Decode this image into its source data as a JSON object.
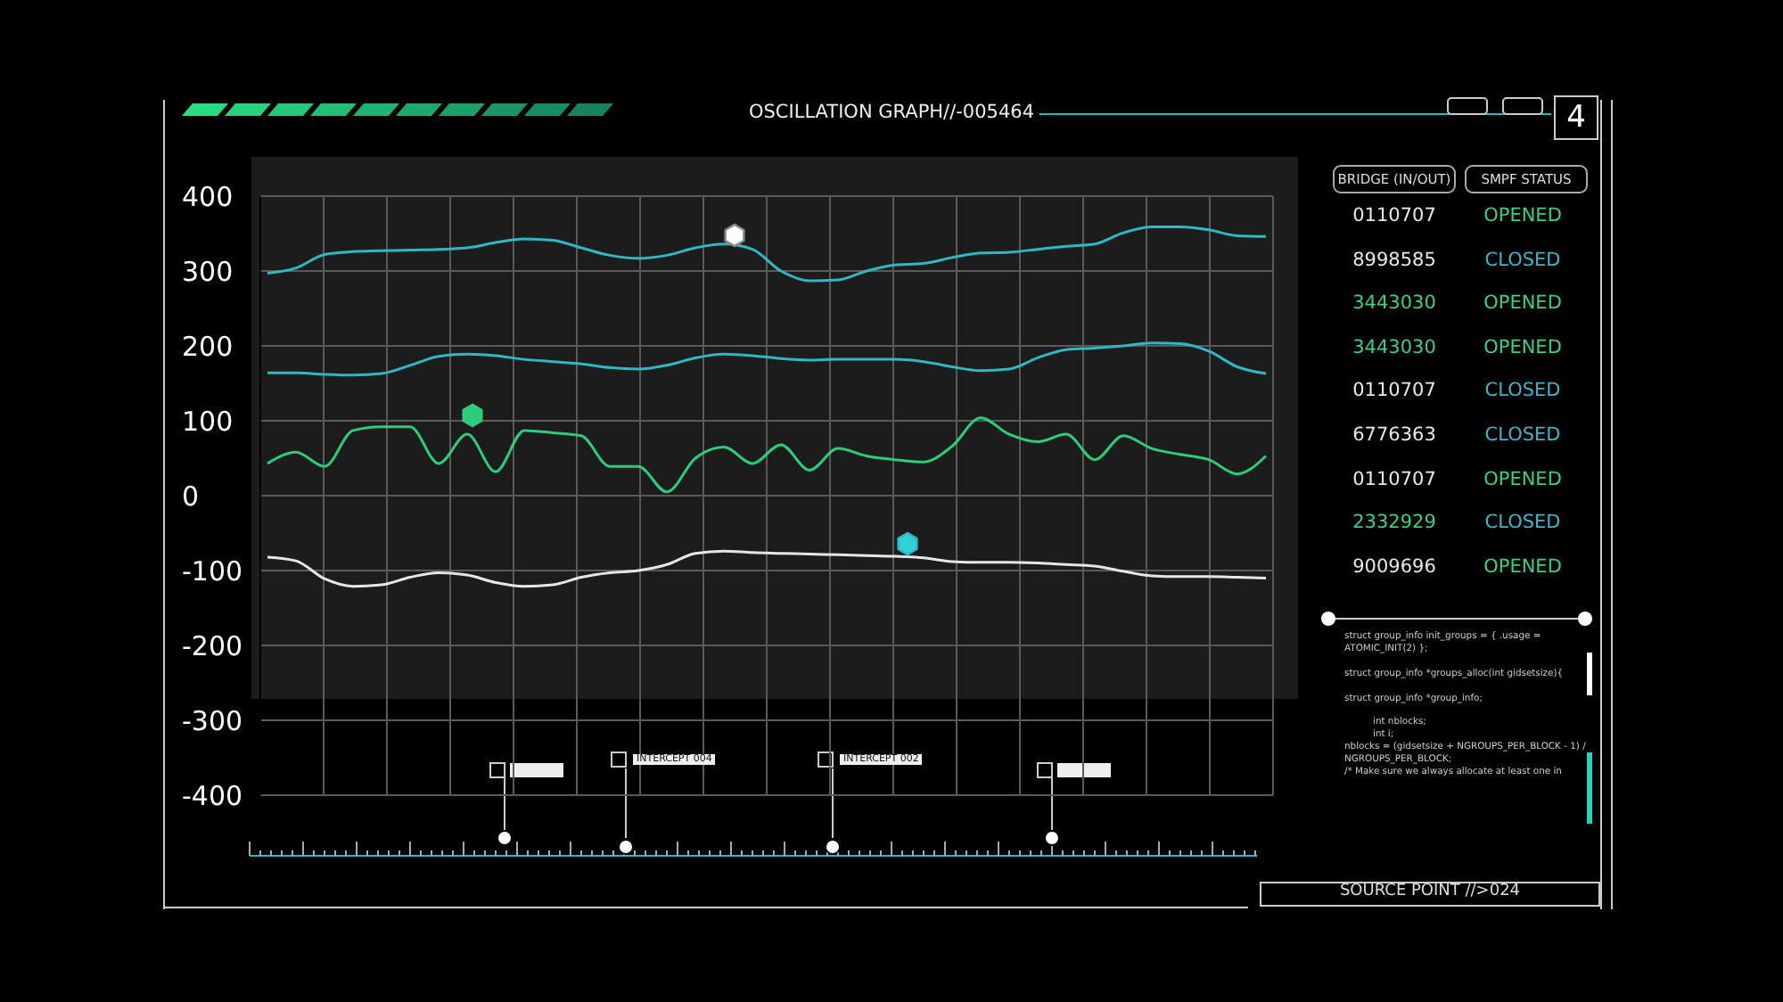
{
  "chart_data": {
    "type": "line",
    "title": "OSCILLATION GRAPH//-005464",
    "categories": [
      null,
      null,
      null,
      null,
      null,
      null,
      null,
      null,
      null,
      null,
      null,
      null,
      null,
      null,
      null,
      null,
      null,
      null,
      null,
      null,
      null,
      null,
      null,
      null,
      null,
      null,
      null,
      null,
      null,
      null,
      null,
      null,
      null,
      null,
      null,
      null
    ],
    "series": [
      {
        "color": "#2fb8c4",
        "values": [
          297,
          304,
          322,
          326,
          327,
          328,
          329,
          331,
          338,
          343,
          341,
          331,
          321,
          317,
          321,
          331,
          336,
          329,
          300,
          287,
          288,
          300,
          308,
          310,
          318,
          324,
          325,
          329,
          333,
          336,
          351,
          359,
          359,
          355,
          347,
          346
        ]
      },
      {
        "color": "#2fb8c4",
        "values": [
          164,
          164,
          162,
          161,
          163,
          174,
          186,
          189,
          187,
          182,
          179,
          176,
          171,
          169,
          174,
          184,
          189,
          187,
          183,
          181,
          182,
          182,
          182,
          179,
          172,
          167,
          169,
          184,
          195,
          197,
          200,
          204,
          203,
          193,
          172,
          163
        ]
      },
      {
        "color": "#2ecc7a",
        "values": [
          43,
          58,
          39,
          87,
          92,
          92,
          43,
          82,
          32,
          87,
          84,
          80,
          39,
          39,
          5,
          50,
          65,
          43,
          68,
          34,
          63,
          53,
          48,
          45,
          66,
          104,
          82,
          72,
          82,
          48,
          80,
          63,
          55,
          48,
          29,
          53
        ]
      },
      {
        "color": "#e6e6e6",
        "values": [
          -82,
          -87,
          -111,
          -121,
          -119,
          -109,
          -103,
          -106,
          -116,
          -121,
          -119,
          -109,
          -103,
          -100,
          -92,
          -77,
          -74,
          -76,
          -77,
          -78,
          -79,
          -80,
          -81,
          -83,
          -88,
          -89,
          -89,
          -90,
          -92,
          -94,
          -101,
          -107,
          -108,
          -108,
          -109,
          -110
        ]
      }
    ],
    "ylim": [
      -400,
      400
    ],
    "yticks": [
      -400,
      -300,
      -200,
      -100,
      0,
      100,
      200,
      300,
      400
    ],
    "grid": true,
    "tick_labels": "y",
    "marker": "none",
    "line_style": "solid",
    "annotations": [
      "4",
      "BRIDGE (IN/OUT)",
      "SMPF STATUS",
      "0110707",
      "OPENED",
      "8998585",
      "CLOSED",
      "3443030",
      "OPENED",
      "3443030",
      "OPENED",
      "0110707",
      "CLOSED",
      "6776363",
      "CLOSED",
      "0110707",
      "OPENED",
      "2332929",
      "CLOSED",
      "9009696",
      "OPENED",
      "struct group_info init_groups = { .usage =",
      "ATOMIC_INIT(2) };",
      "struct group_info *groups_alloc(int gidsetsize){",
      "struct group_info *group_info;",
      "int nblocks;",
      "int i;",
      "nblocks = (gidsetsize + NGROUPS_PER_BLOCK - 1) /",
      "NGROUPS_PER_BLOCK;",
      "/* Make sure we always allocate at least one in",
      "INTERCEPT 004",
      "INTERCEPT 002",
      "SOURCE POINT //>024"
    ]
  }
}
